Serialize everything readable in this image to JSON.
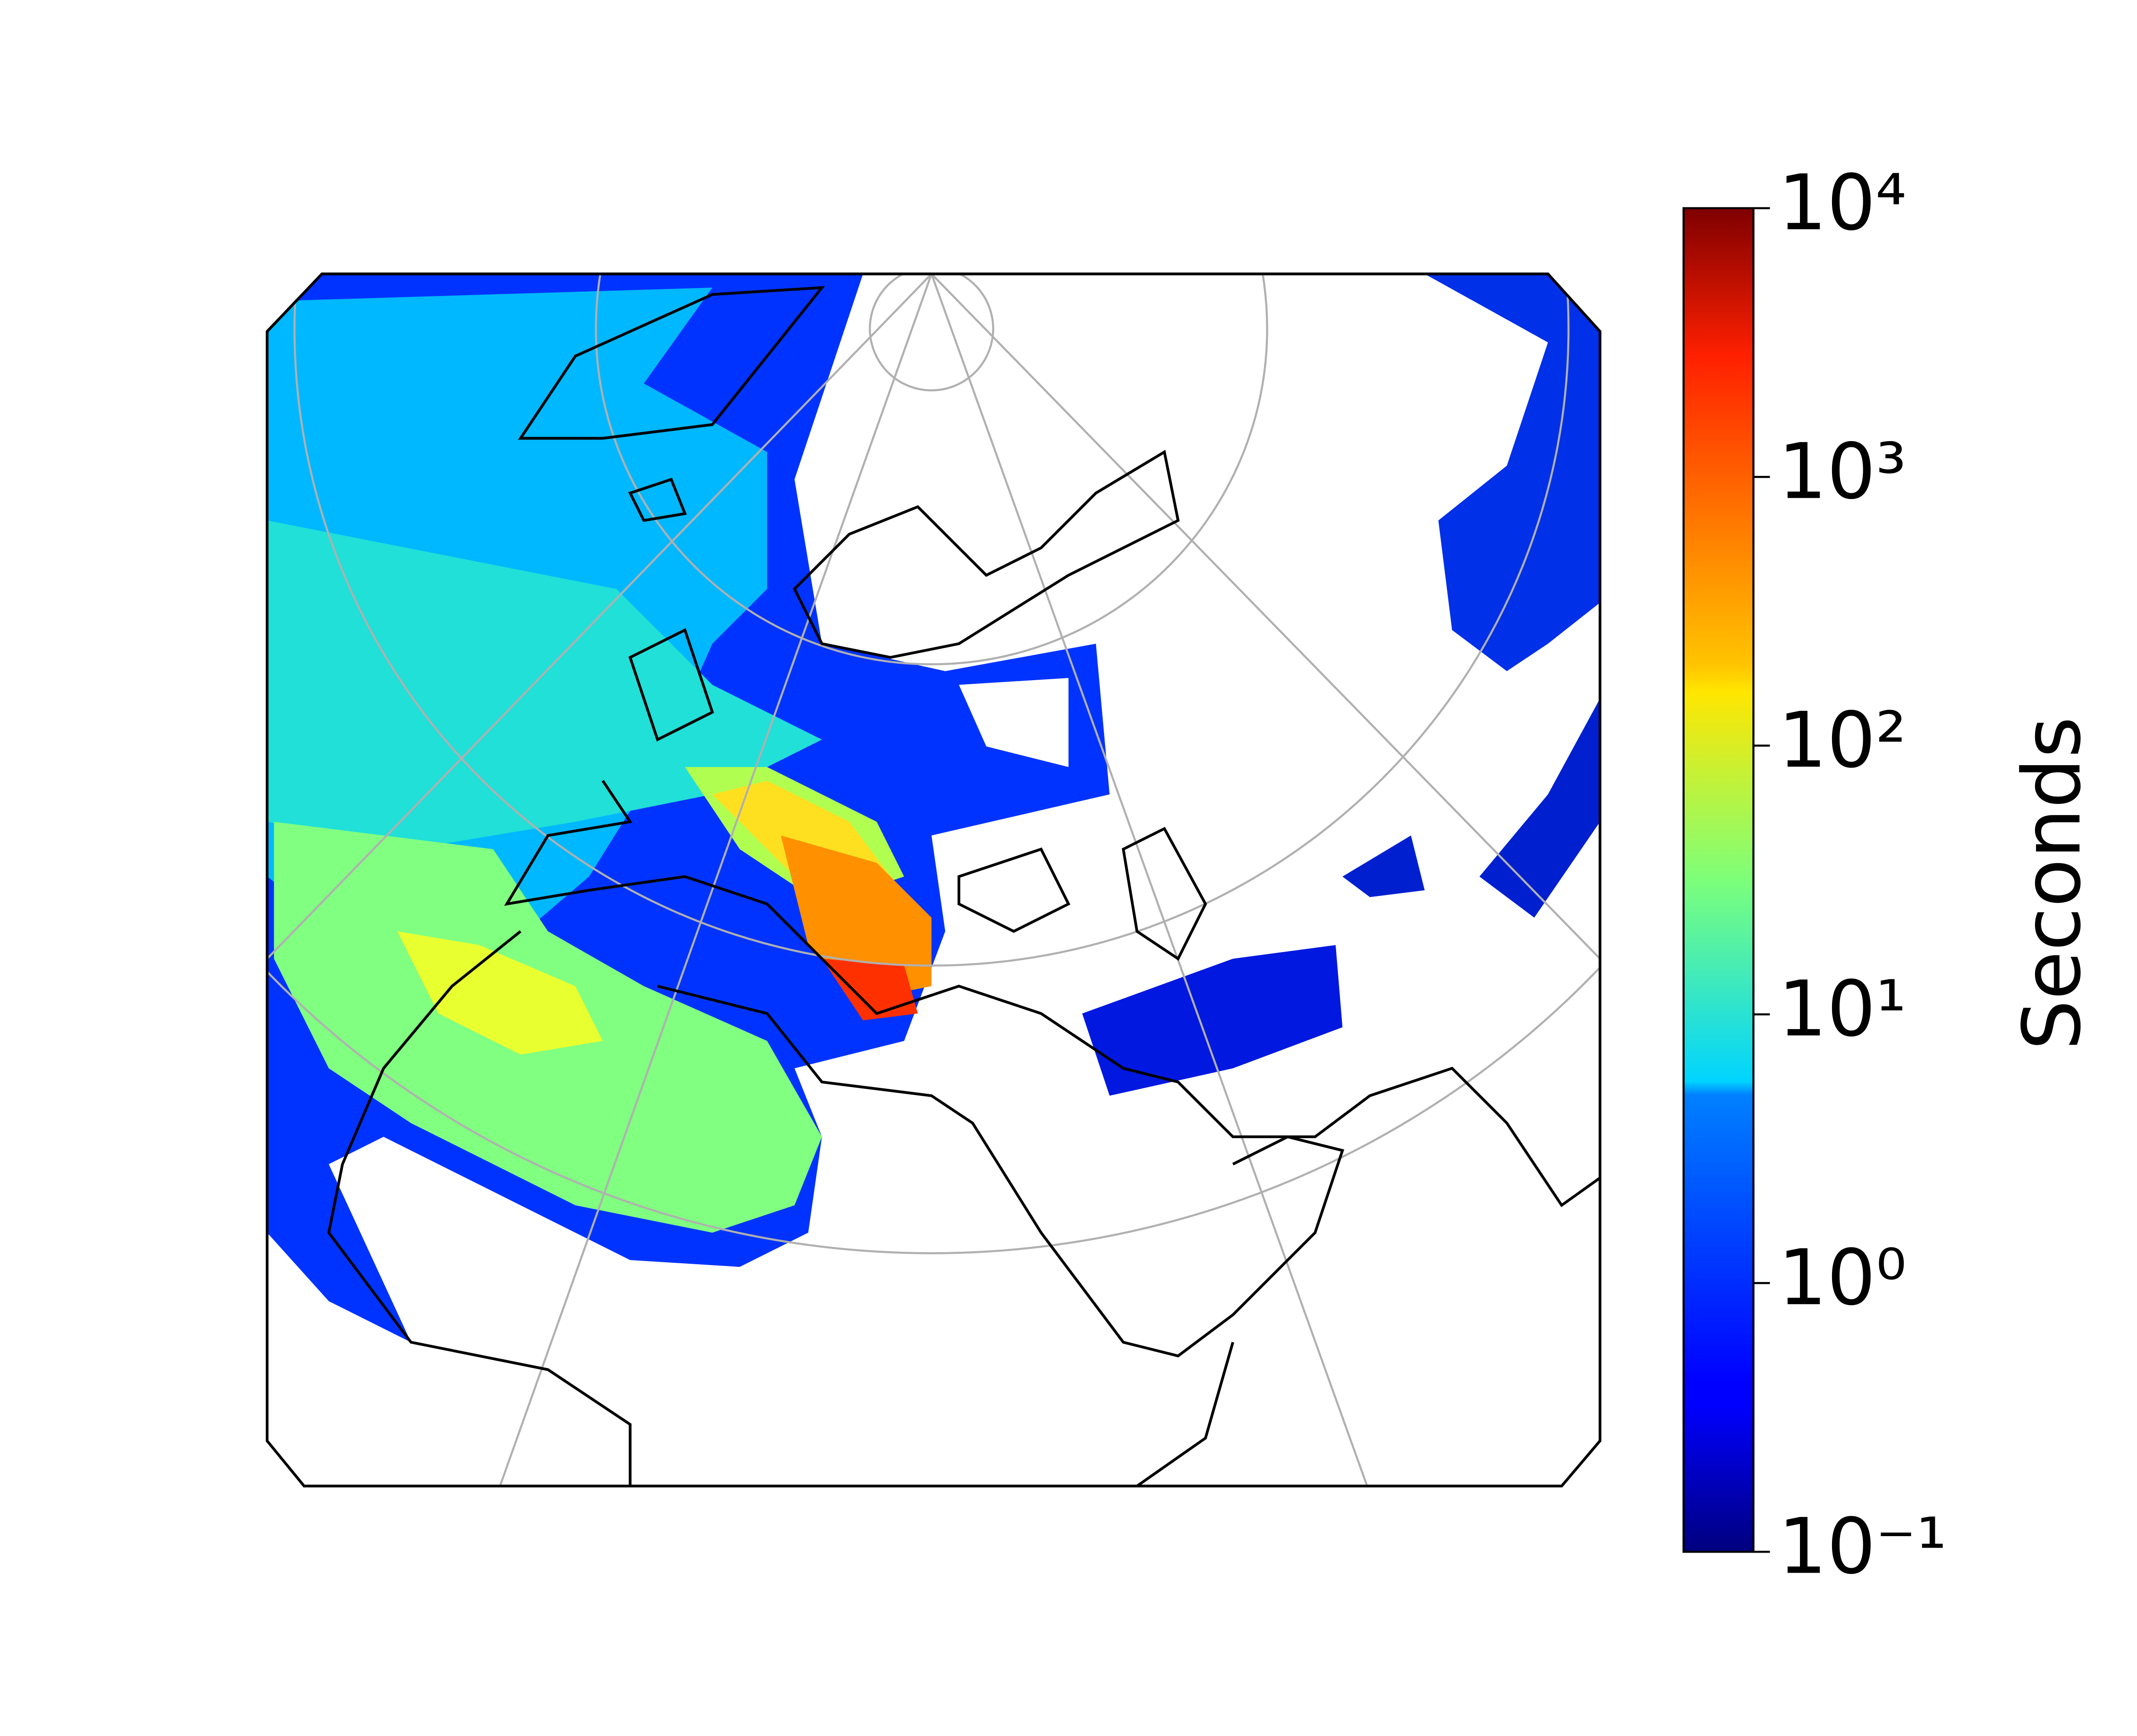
{
  "colorbar": {
    "label": "Seconds",
    "scale": "log",
    "colormap": "jet",
    "lim": [
      0.1,
      10000
    ],
    "ticks": [
      {
        "value": 0.1,
        "label": "10⁻¹"
      },
      {
        "value": 1,
        "label": "10⁰"
      },
      {
        "value": 10,
        "label": "10¹"
      },
      {
        "value": 100,
        "label": "10²"
      },
      {
        "value": 1000,
        "label": "10³"
      },
      {
        "value": 10000,
        "label": "10⁴"
      }
    ]
  }
}
